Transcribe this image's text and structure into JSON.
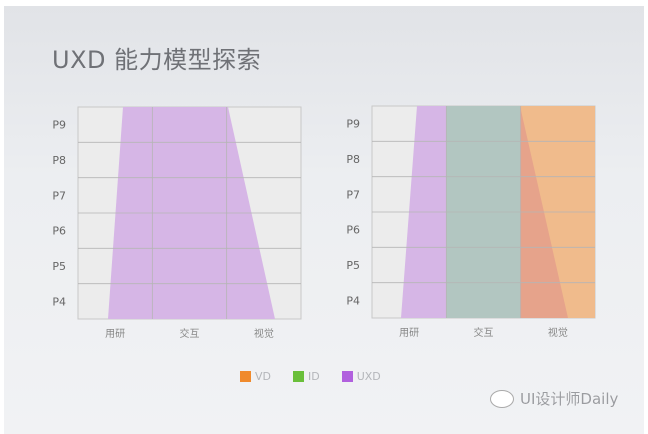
{
  "title": "UXD 能力模型探索",
  "levels": [
    "P9",
    "P8",
    "P7",
    "P6",
    "P5",
    "P4"
  ],
  "categories": [
    "用研",
    "交互",
    "视觉"
  ],
  "legend": [
    {
      "label": "VD",
      "color": "#f08a2c"
    },
    {
      "label": "ID",
      "color": "#6abf3a"
    },
    {
      "label": "UXD",
      "color": "#b160de"
    }
  ],
  "brand": "UI设计师Daily",
  "colors": {
    "grid_bg": "#ececec",
    "uxd_fill": "#d6b6e6",
    "id_fill": "#b2c6c1",
    "vd_fill": "#f0bb8c",
    "overlap_fill": "#e6a38b"
  }
}
